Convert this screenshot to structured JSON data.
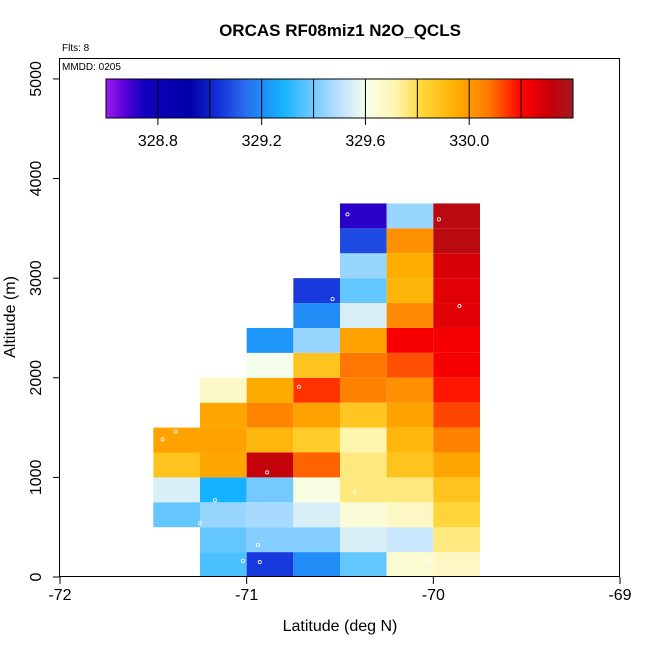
{
  "chart_data": {
    "type": "heatmap",
    "title": "ORCAS RF08miz1 N2O_QCLS",
    "xlabel": "Latitude (deg N)",
    "ylabel": "Altitude (m)",
    "xlim": [
      -72,
      -69
    ],
    "ylim": [
      0,
      5200
    ],
    "xticks": [
      -72,
      -71,
      -70,
      -69
    ],
    "xtick_labels": [
      "-72",
      "-71",
      "-70",
      "-69"
    ],
    "yticks": [
      0,
      1000,
      2000,
      3000,
      4000,
      5000
    ],
    "ytick_labels": [
      "0",
      "1000",
      "2000",
      "3000",
      "4000",
      "5000"
    ],
    "annotations": {
      "flights": "Flts: 8",
      "date": "MMDD: 0205"
    },
    "cell_width_deg": 0.25,
    "cell_height_m": 250,
    "colorbar": {
      "vmin": 328.6,
      "vmax": 330.4,
      "segments": 9,
      "tick_values": [
        328.8,
        329.2,
        329.6,
        330.0
      ],
      "tick_labels": [
        "328.8",
        "329.2",
        "329.6",
        "330.0"
      ]
    },
    "cells": [
      {
        "lat": -71.375,
        "alt": 625,
        "value": 329.38
      },
      {
        "lat": -71.375,
        "alt": 875,
        "value": 329.55
      },
      {
        "lat": -71.375,
        "alt": 1125,
        "value": 329.88
      },
      {
        "lat": -71.375,
        "alt": 1375,
        "value": 329.98
      },
      {
        "lat": -71.125,
        "alt": 125,
        "value": 329.35
      },
      {
        "lat": -71.125,
        "alt": 375,
        "value": 329.38
      },
      {
        "lat": -71.125,
        "alt": 625,
        "value": 329.45
      },
      {
        "lat": -71.125,
        "alt": 875,
        "value": 329.28
      },
      {
        "lat": -71.125,
        "alt": 1125,
        "value": 329.97
      },
      {
        "lat": -71.125,
        "alt": 1375,
        "value": 329.98
      },
      {
        "lat": -71.125,
        "alt": 1625,
        "value": 329.97
      },
      {
        "lat": -71.125,
        "alt": 1875,
        "value": 329.67
      },
      {
        "lat": -70.875,
        "alt": 125,
        "value": 329.05
      },
      {
        "lat": -70.875,
        "alt": 375,
        "value": 329.42
      },
      {
        "lat": -70.875,
        "alt": 625,
        "value": 329.47
      },
      {
        "lat": -70.875,
        "alt": 875,
        "value": 329.4
      },
      {
        "lat": -70.875,
        "alt": 1125,
        "value": 330.32
      },
      {
        "lat": -70.875,
        "alt": 1375,
        "value": 329.92
      },
      {
        "lat": -70.875,
        "alt": 1625,
        "value": 330.05
      },
      {
        "lat": -70.875,
        "alt": 1875,
        "value": 329.96
      },
      {
        "lat": -70.875,
        "alt": 2125,
        "value": 329.6
      },
      {
        "lat": -70.875,
        "alt": 2375,
        "value": 329.22
      },
      {
        "lat": -70.625,
        "alt": 125,
        "value": 329.2
      },
      {
        "lat": -70.625,
        "alt": 375,
        "value": 329.42
      },
      {
        "lat": -70.625,
        "alt": 625,
        "value": 329.55
      },
      {
        "lat": -70.625,
        "alt": 875,
        "value": 329.62
      },
      {
        "lat": -70.625,
        "alt": 1125,
        "value": 330.1
      },
      {
        "lat": -70.625,
        "alt": 1375,
        "value": 329.85
      },
      {
        "lat": -70.625,
        "alt": 1625,
        "value": 329.98
      },
      {
        "lat": -70.625,
        "alt": 1875,
        "value": 330.15
      },
      {
        "lat": -70.625,
        "alt": 2125,
        "value": 329.88
      },
      {
        "lat": -70.625,
        "alt": 2375,
        "value": 329.45
      },
      {
        "lat": -70.625,
        "alt": 2625,
        "value": 329.2
      },
      {
        "lat": -70.625,
        "alt": 2875,
        "value": 329.05
      },
      {
        "lat": -70.375,
        "alt": 125,
        "value": 329.38
      },
      {
        "lat": -70.375,
        "alt": 375,
        "value": 329.55
      },
      {
        "lat": -70.375,
        "alt": 625,
        "value": 329.64
      },
      {
        "lat": -70.375,
        "alt": 875,
        "value": 329.76
      },
      {
        "lat": -70.375,
        "alt": 1125,
        "value": 329.76
      },
      {
        "lat": -70.375,
        "alt": 1375,
        "value": 329.72
      },
      {
        "lat": -70.375,
        "alt": 1625,
        "value": 329.87
      },
      {
        "lat": -70.375,
        "alt": 1875,
        "value": 330.06
      },
      {
        "lat": -70.375,
        "alt": 2125,
        "value": 330.08
      },
      {
        "lat": -70.375,
        "alt": 2375,
        "value": 329.98
      },
      {
        "lat": -70.375,
        "alt": 2625,
        "value": 329.55
      },
      {
        "lat": -70.375,
        "alt": 2875,
        "value": 329.38
      },
      {
        "lat": -70.375,
        "alt": 3125,
        "value": 329.45
      },
      {
        "lat": -70.375,
        "alt": 3375,
        "value": 329.08
      },
      {
        "lat": -70.375,
        "alt": 3625,
        "value": 328.72
      },
      {
        "lat": -70.125,
        "alt": 125,
        "value": 329.65
      },
      {
        "lat": -70.125,
        "alt": 375,
        "value": 329.52
      },
      {
        "lat": -70.125,
        "alt": 625,
        "value": 329.68
      },
      {
        "lat": -70.125,
        "alt": 875,
        "value": 329.76
      },
      {
        "lat": -70.125,
        "alt": 1125,
        "value": 329.88
      },
      {
        "lat": -70.125,
        "alt": 1375,
        "value": 329.92
      },
      {
        "lat": -70.125,
        "alt": 1625,
        "value": 329.98
      },
      {
        "lat": -70.125,
        "alt": 1875,
        "value": 330.02
      },
      {
        "lat": -70.125,
        "alt": 2125,
        "value": 330.12
      },
      {
        "lat": -70.125,
        "alt": 2375,
        "value": 330.22
      },
      {
        "lat": -70.125,
        "alt": 2625,
        "value": 330.04
      },
      {
        "lat": -70.125,
        "alt": 2875,
        "value": 329.93
      },
      {
        "lat": -70.125,
        "alt": 3125,
        "value": 329.95
      },
      {
        "lat": -70.125,
        "alt": 3375,
        "value": 330.02
      },
      {
        "lat": -70.125,
        "alt": 3625,
        "value": 329.45
      },
      {
        "lat": -69.875,
        "alt": 125,
        "value": 329.68
      },
      {
        "lat": -69.875,
        "alt": 375,
        "value": 329.76
      },
      {
        "lat": -69.875,
        "alt": 625,
        "value": 329.82
      },
      {
        "lat": -69.875,
        "alt": 875,
        "value": 329.88
      },
      {
        "lat": -69.875,
        "alt": 1125,
        "value": 329.97
      },
      {
        "lat": -69.875,
        "alt": 1375,
        "value": 330.06
      },
      {
        "lat": -69.875,
        "alt": 1625,
        "value": 330.13
      },
      {
        "lat": -69.875,
        "alt": 1875,
        "value": 330.18
      },
      {
        "lat": -69.875,
        "alt": 2125,
        "value": 330.22
      },
      {
        "lat": -69.875,
        "alt": 2375,
        "value": 330.22
      },
      {
        "lat": -69.875,
        "alt": 2625,
        "value": 330.26
      },
      {
        "lat": -69.875,
        "alt": 2875,
        "value": 330.26
      },
      {
        "lat": -69.875,
        "alt": 3125,
        "value": 330.28
      },
      {
        "lat": -69.875,
        "alt": 3375,
        "value": 330.34
      },
      {
        "lat": -69.875,
        "alt": 3625,
        "value": 330.34
      }
    ],
    "sample_points": [
      {
        "lat": -71.45,
        "alt": 1380
      },
      {
        "lat": -71.38,
        "alt": 1460
      },
      {
        "lat": -71.17,
        "alt": 770
      },
      {
        "lat": -71.25,
        "alt": 540
      },
      {
        "lat": -71.02,
        "alt": 160
      },
      {
        "lat": -70.94,
        "alt": 320
      },
      {
        "lat": -70.93,
        "alt": 150
      },
      {
        "lat": -70.89,
        "alt": 1050
      },
      {
        "lat": -70.72,
        "alt": 1910
      },
      {
        "lat": -70.54,
        "alt": 2790
      },
      {
        "lat": -70.42,
        "alt": 850
      },
      {
        "lat": -70.46,
        "alt": 3640
      },
      {
        "lat": -70.02,
        "alt": 160
      },
      {
        "lat": -69.97,
        "alt": 3590
      },
      {
        "lat": -69.86,
        "alt": 2720
      }
    ]
  }
}
